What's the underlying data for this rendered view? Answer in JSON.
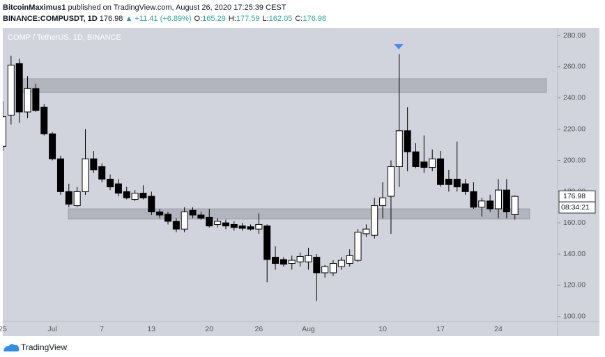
{
  "header": {
    "author": "BitcoinMaximus1",
    "published": "published on TradingView.com, August 26, 2020 17:25:39 CEST",
    "symbol": "BINANCE:COMPUSDT, 1D",
    "last": "176.98",
    "change": "▲ +11.41 (+6.89%)",
    "ohlc": [
      {
        "key": "O:",
        "value": "165.29"
      },
      {
        "key": "H:",
        "value": "177.59"
      },
      {
        "key": "L:",
        "value": "162.05"
      },
      {
        "key": "C:",
        "value": "176.98"
      }
    ]
  },
  "footer": {
    "brand": "TradingView"
  },
  "chart_data": {
    "type": "candlestick",
    "title": "COMP / TetherUS, 1D, BINANCE",
    "categories": [
      "25",
      null,
      null,
      null,
      null,
      null,
      "Jul",
      null,
      null,
      null,
      null,
      null,
      "7",
      null,
      null,
      null,
      null,
      null,
      "13",
      null,
      null,
      null,
      null,
      null,
      null,
      "20",
      null,
      null,
      null,
      null,
      null,
      "26",
      null,
      null,
      null,
      null,
      null,
      "Aug",
      null,
      null,
      null,
      null,
      null,
      null,
      null,
      null,
      "10",
      null,
      null,
      null,
      null,
      null,
      null,
      "17",
      null,
      null,
      null,
      null,
      null,
      null,
      "24",
      null,
      null
    ],
    "open": [
      209,
      229,
      262,
      231,
      246,
      234,
      217,
      201,
      180,
      171,
      180,
      201,
      196,
      188,
      185,
      180,
      175,
      179,
      177,
      167,
      165.5,
      161,
      156,
      168,
      165,
      163.5,
      159,
      160,
      159,
      158,
      157.5,
      156,
      158,
      138,
      136.5,
      134,
      135,
      135,
      138,
      128,
      128,
      132,
      134,
      136,
      153,
      152,
      171,
      177,
      196,
      219,
      205.5,
      199,
      195.5,
      201,
      188,
      188,
      185,
      180,
      170,
      174,
      169,
      181,
      165.29
    ],
    "high": [
      238,
      267,
      265,
      254,
      249,
      236,
      218,
      203,
      185,
      183,
      220,
      206,
      198,
      191,
      188,
      183,
      181,
      184,
      180,
      169,
      167,
      163,
      170,
      170,
      167,
      169,
      163,
      162,
      161,
      160,
      159,
      166,
      159,
      145,
      138,
      139,
      141,
      144,
      140,
      133,
      136,
      138,
      143,
      156,
      159,
      176,
      186,
      200,
      268,
      234,
      211,
      216,
      207,
      206,
      194,
      212,
      188,
      186,
      176,
      178,
      188,
      188,
      177.59
    ],
    "low": [
      206,
      223,
      224,
      227,
      231,
      216,
      200,
      178,
      170,
      170,
      178,
      192,
      186,
      181,
      177,
      175,
      174,
      175,
      165,
      163,
      159,
      154,
      154,
      163,
      162,
      157,
      157,
      156,
      155,
      155,
      155,
      153,
      122,
      130,
      132,
      130,
      132,
      130,
      110,
      125,
      126,
      130,
      132,
      135,
      151,
      150,
      163,
      153,
      183,
      193,
      195,
      192,
      193,
      183,
      180,
      180,
      178,
      169,
      164,
      167,
      163,
      163,
      162.05
    ],
    "close": [
      228,
      261,
      231,
      246,
      232,
      217,
      201,
      180,
      172,
      180,
      201,
      194,
      188,
      183,
      179,
      176,
      179,
      176,
      167,
      165,
      161,
      156,
      167,
      165,
      163,
      158,
      161,
      158,
      157,
      156.5,
      156,
      159,
      136.5,
      134,
      133.5,
      136,
      138.5,
      139,
      128,
      132,
      134,
      136,
      139,
      154,
      156,
      171,
      176,
      196,
      219,
      205.5,
      196,
      195.5,
      201,
      184.5,
      184.5,
      183,
      180,
      170,
      174,
      169,
      181,
      167,
      176.98
    ],
    "zones": [
      {
        "high": 252.4,
        "low": 243.5
      },
      {
        "high": 169,
        "low": 162.4
      }
    ],
    "price_label": 176.98,
    "countdown": "08:34:21",
    "ylim": [
      96.8,
      284.9
    ],
    "yticks": [
      {
        "value": 100,
        "label": "100.00"
      },
      {
        "value": 120,
        "label": "120.00"
      },
      {
        "value": 140,
        "label": "140.00"
      },
      {
        "value": 160,
        "label": "160.00"
      },
      {
        "value": 180,
        "label": "180.00"
      },
      {
        "value": 200,
        "label": "200.00"
      },
      {
        "value": 220,
        "label": "220.00"
      },
      {
        "value": 240,
        "label": "240.00"
      },
      {
        "value": 260,
        "label": "260.00"
      },
      {
        "value": 280,
        "label": "280.00"
      }
    ],
    "up_color": "#ffffff",
    "down_color": "#000000"
  }
}
